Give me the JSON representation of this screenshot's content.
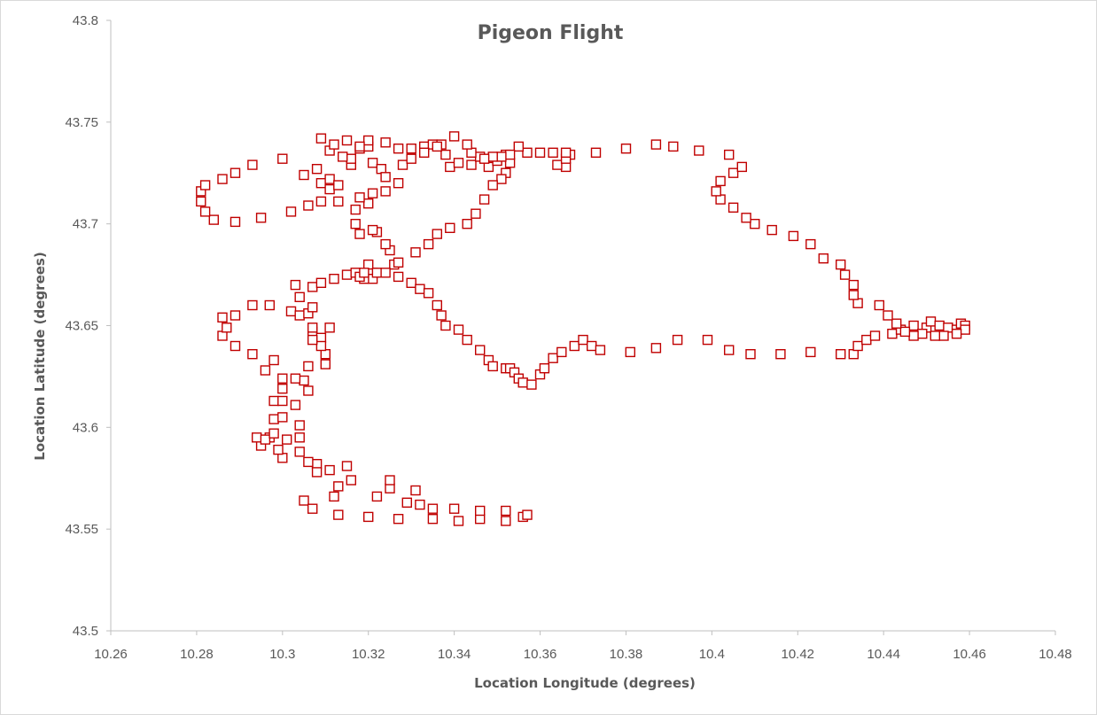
{
  "chart_data": {
    "type": "scatter",
    "title": "Pigeon Flight",
    "xlabel": "Location Longitude (degrees)",
    "ylabel": "Location Latitude (degrees)",
    "xlim": [
      10.26,
      10.48
    ],
    "ylim": [
      43.5,
      43.8
    ],
    "xticks": [
      "10.26",
      "10.28",
      "10.3",
      "10.32",
      "10.34",
      "10.36",
      "10.38",
      "10.4",
      "10.42",
      "10.44",
      "10.46",
      "10.48"
    ],
    "yticks": [
      "43.5",
      "43.55",
      "43.6",
      "43.65",
      "43.7",
      "43.75",
      "43.8"
    ],
    "grid": false,
    "legend": "none",
    "marker": "hollow-square",
    "color": "#c00000",
    "points": [
      [
        10.356,
        43.556
      ],
      [
        10.357,
        43.557
      ],
      [
        10.352,
        43.554
      ],
      [
        10.352,
        43.559
      ],
      [
        10.346,
        43.555
      ],
      [
        10.346,
        43.559
      ],
      [
        10.341,
        43.554
      ],
      [
        10.34,
        43.56
      ],
      [
        10.335,
        43.555
      ],
      [
        10.335,
        43.56
      ],
      [
        10.332,
        43.562
      ],
      [
        10.329,
        43.563
      ],
      [
        10.331,
        43.569
      ],
      [
        10.327,
        43.555
      ],
      [
        10.325,
        43.57
      ],
      [
        10.325,
        43.574
      ],
      [
        10.322,
        43.566
      ],
      [
        10.32,
        43.556
      ],
      [
        10.316,
        43.574
      ],
      [
        10.315,
        43.581
      ],
      [
        10.313,
        43.571
      ],
      [
        10.313,
        43.557
      ],
      [
        10.312,
        43.566
      ],
      [
        10.311,
        43.579
      ],
      [
        10.305,
        43.564
      ],
      [
        10.307,
        43.56
      ],
      [
        10.308,
        43.582
      ],
      [
        10.308,
        43.578
      ],
      [
        10.304,
        43.588
      ],
      [
        10.306,
        43.583
      ],
      [
        10.3,
        43.585
      ],
      [
        10.299,
        43.589
      ],
      [
        10.297,
        43.595
      ],
      [
        10.295,
        43.591
      ],
      [
        10.294,
        43.595
      ],
      [
        10.296,
        43.594
      ],
      [
        10.298,
        43.597
      ],
      [
        10.301,
        43.594
      ],
      [
        10.304,
        43.595
      ],
      [
        10.304,
        43.601
      ],
      [
        10.298,
        43.604
      ],
      [
        10.3,
        43.605
      ],
      [
        10.298,
        43.613
      ],
      [
        10.3,
        43.613
      ],
      [
        10.303,
        43.611
      ],
      [
        10.306,
        43.618
      ],
      [
        10.305,
        43.623
      ],
      [
        10.303,
        43.624
      ],
      [
        10.3,
        43.619
      ],
      [
        10.3,
        43.624
      ],
      [
        10.306,
        43.63
      ],
      [
        10.298,
        43.633
      ],
      [
        10.296,
        43.628
      ],
      [
        10.293,
        43.636
      ],
      [
        10.289,
        43.64
      ],
      [
        10.286,
        43.645
      ],
      [
        10.287,
        43.649
      ],
      [
        10.286,
        43.654
      ],
      [
        10.289,
        43.655
      ],
      [
        10.293,
        43.66
      ],
      [
        10.297,
        43.66
      ],
      [
        10.302,
        43.657
      ],
      [
        10.304,
        43.655
      ],
      [
        10.307,
        43.647
      ],
      [
        10.306,
        43.656
      ],
      [
        10.309,
        43.644
      ],
      [
        10.311,
        43.649
      ],
      [
        10.31,
        43.631
      ],
      [
        10.31,
        43.636
      ],
      [
        10.309,
        43.64
      ],
      [
        10.307,
        43.643
      ],
      [
        10.307,
        43.649
      ],
      [
        10.307,
        43.659
      ],
      [
        10.304,
        43.664
      ],
      [
        10.303,
        43.67
      ],
      [
        10.307,
        43.669
      ],
      [
        10.309,
        43.671
      ],
      [
        10.312,
        43.673
      ],
      [
        10.315,
        43.675
      ],
      [
        10.317,
        43.676
      ],
      [
        10.321,
        43.676
      ],
      [
        10.321,
        43.673
      ],
      [
        10.32,
        43.68
      ],
      [
        10.326,
        43.68
      ],
      [
        10.325,
        43.687
      ],
      [
        10.324,
        43.69
      ],
      [
        10.322,
        43.696
      ],
      [
        10.321,
        43.697
      ],
      [
        10.318,
        43.695
      ],
      [
        10.317,
        43.7
      ],
      [
        10.317,
        43.707
      ],
      [
        10.313,
        43.711
      ],
      [
        10.309,
        43.711
      ],
      [
        10.306,
        43.709
      ],
      [
        10.302,
        43.706
      ],
      [
        10.295,
        43.703
      ],
      [
        10.289,
        43.701
      ],
      [
        10.284,
        43.702
      ],
      [
        10.282,
        43.706
      ],
      [
        10.281,
        43.711
      ],
      [
        10.281,
        43.716
      ],
      [
        10.282,
        43.719
      ],
      [
        10.286,
        43.722
      ],
      [
        10.289,
        43.725
      ],
      [
        10.293,
        43.729
      ],
      [
        10.3,
        43.732
      ],
      [
        10.305,
        43.724
      ],
      [
        10.308,
        43.727
      ],
      [
        10.309,
        43.72
      ],
      [
        10.311,
        43.717
      ],
      [
        10.311,
        43.722
      ],
      [
        10.313,
        43.719
      ],
      [
        10.316,
        43.729
      ],
      [
        10.318,
        43.737
      ],
      [
        10.32,
        43.738
      ],
      [
        10.321,
        43.73
      ],
      [
        10.323,
        43.727
      ],
      [
        10.324,
        43.723
      ],
      [
        10.321,
        43.715
      ],
      [
        10.32,
        43.71
      ],
      [
        10.318,
        43.713
      ],
      [
        10.324,
        43.716
      ],
      [
        10.327,
        43.72
      ],
      [
        10.328,
        43.729
      ],
      [
        10.33,
        43.737
      ],
      [
        10.333,
        43.738
      ],
      [
        10.335,
        43.739
      ],
      [
        10.337,
        43.739
      ],
      [
        10.338,
        43.734
      ],
      [
        10.339,
        43.728
      ],
      [
        10.341,
        43.73
      ],
      [
        10.344,
        43.729
      ],
      [
        10.346,
        43.733
      ],
      [
        10.348,
        43.728
      ],
      [
        10.35,
        43.731
      ],
      [
        10.352,
        43.734
      ],
      [
        10.353,
        43.73
      ],
      [
        10.352,
        43.725
      ],
      [
        10.351,
        43.722
      ],
      [
        10.349,
        43.719
      ],
      [
        10.347,
        43.712
      ],
      [
        10.345,
        43.705
      ],
      [
        10.343,
        43.7
      ],
      [
        10.339,
        43.698
      ],
      [
        10.336,
        43.695
      ],
      [
        10.334,
        43.69
      ],
      [
        10.331,
        43.686
      ],
      [
        10.327,
        43.681
      ],
      [
        10.322,
        43.676
      ],
      [
        10.319,
        43.673
      ],
      [
        10.318,
        43.674
      ],
      [
        10.319,
        43.676
      ],
      [
        10.324,
        43.676
      ],
      [
        10.327,
        43.674
      ],
      [
        10.33,
        43.671
      ],
      [
        10.332,
        43.668
      ],
      [
        10.334,
        43.666
      ],
      [
        10.336,
        43.66
      ],
      [
        10.337,
        43.655
      ],
      [
        10.338,
        43.65
      ],
      [
        10.341,
        43.648
      ],
      [
        10.343,
        43.643
      ],
      [
        10.346,
        43.638
      ],
      [
        10.348,
        43.633
      ],
      [
        10.349,
        43.63
      ],
      [
        10.352,
        43.629
      ],
      [
        10.353,
        43.629
      ],
      [
        10.354,
        43.627
      ],
      [
        10.355,
        43.624
      ],
      [
        10.356,
        43.622
      ],
      [
        10.358,
        43.621
      ],
      [
        10.36,
        43.626
      ],
      [
        10.361,
        43.629
      ],
      [
        10.363,
        43.634
      ],
      [
        10.365,
        43.637
      ],
      [
        10.368,
        43.64
      ],
      [
        10.37,
        43.643
      ],
      [
        10.372,
        43.64
      ],
      [
        10.374,
        43.638
      ],
      [
        10.381,
        43.637
      ],
      [
        10.387,
        43.639
      ],
      [
        10.392,
        43.643
      ],
      [
        10.399,
        43.643
      ],
      [
        10.404,
        43.638
      ],
      [
        10.409,
        43.636
      ],
      [
        10.416,
        43.636
      ],
      [
        10.423,
        43.637
      ],
      [
        10.43,
        43.636
      ],
      [
        10.433,
        43.636
      ],
      [
        10.434,
        43.64
      ],
      [
        10.436,
        43.643
      ],
      [
        10.438,
        43.645
      ],
      [
        10.442,
        43.646
      ],
      [
        10.444,
        43.648
      ],
      [
        10.447,
        43.65
      ],
      [
        10.45,
        43.649
      ],
      [
        10.451,
        43.652
      ],
      [
        10.453,
        43.65
      ],
      [
        10.455,
        43.649
      ],
      [
        10.457,
        43.648
      ],
      [
        10.458,
        43.651
      ],
      [
        10.459,
        43.65
      ],
      [
        10.459,
        43.648
      ],
      [
        10.457,
        43.646
      ],
      [
        10.454,
        43.645
      ],
      [
        10.452,
        43.645
      ],
      [
        10.449,
        43.646
      ],
      [
        10.447,
        43.645
      ],
      [
        10.445,
        43.647
      ],
      [
        10.443,
        43.651
      ],
      [
        10.441,
        43.655
      ],
      [
        10.439,
        43.66
      ],
      [
        10.434,
        43.661
      ],
      [
        10.433,
        43.665
      ],
      [
        10.433,
        43.67
      ],
      [
        10.431,
        43.675
      ],
      [
        10.43,
        43.68
      ],
      [
        10.426,
        43.683
      ],
      [
        10.423,
        43.69
      ],
      [
        10.419,
        43.694
      ],
      [
        10.414,
        43.697
      ],
      [
        10.41,
        43.7
      ],
      [
        10.408,
        43.703
      ],
      [
        10.405,
        43.708
      ],
      [
        10.402,
        43.712
      ],
      [
        10.401,
        43.716
      ],
      [
        10.402,
        43.721
      ],
      [
        10.405,
        43.725
      ],
      [
        10.407,
        43.728
      ],
      [
        10.404,
        43.734
      ],
      [
        10.397,
        43.736
      ],
      [
        10.391,
        43.738
      ],
      [
        10.387,
        43.739
      ],
      [
        10.38,
        43.737
      ],
      [
        10.373,
        43.735
      ],
      [
        10.367,
        43.734
      ],
      [
        10.366,
        43.728
      ],
      [
        10.364,
        43.729
      ],
      [
        10.366,
        43.732
      ],
      [
        10.366,
        43.735
      ],
      [
        10.363,
        43.735
      ],
      [
        10.36,
        43.735
      ],
      [
        10.357,
        43.735
      ],
      [
        10.355,
        43.738
      ],
      [
        10.353,
        43.734
      ],
      [
        10.351,
        43.733
      ],
      [
        10.349,
        43.733
      ],
      [
        10.347,
        43.732
      ],
      [
        10.344,
        43.735
      ],
      [
        10.343,
        43.739
      ],
      [
        10.34,
        43.743
      ],
      [
        10.336,
        43.738
      ],
      [
        10.333,
        43.735
      ],
      [
        10.33,
        43.732
      ],
      [
        10.327,
        43.737
      ],
      [
        10.324,
        43.74
      ],
      [
        10.32,
        43.741
      ],
      [
        10.318,
        43.738
      ],
      [
        10.316,
        43.732
      ],
      [
        10.314,
        43.733
      ],
      [
        10.311,
        43.736
      ],
      [
        10.309,
        43.742
      ],
      [
        10.312,
        43.739
      ],
      [
        10.315,
        43.741
      ]
    ]
  }
}
